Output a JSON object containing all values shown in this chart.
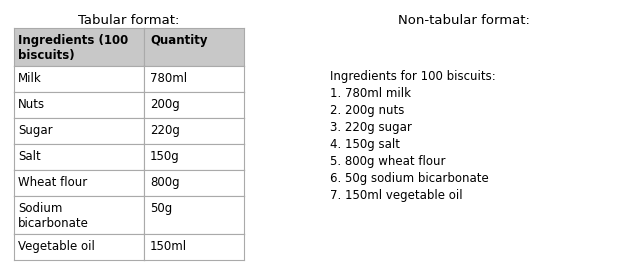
{
  "tabular_title": "Tabular format:",
  "non_tabular_title": "Non-tabular format:",
  "col_headers": [
    "Ingredients (100\nbiscuits)",
    "Quantity"
  ],
  "rows": [
    [
      "Milk",
      "780ml"
    ],
    [
      "Nuts",
      "200g"
    ],
    [
      "Sugar",
      "220g"
    ],
    [
      "Salt",
      "150g"
    ],
    [
      "Wheat flour",
      "800g"
    ],
    [
      "Sodium\nbicarbonate",
      "50g"
    ],
    [
      "Vegetable oil",
      "150ml"
    ]
  ],
  "non_tabular_intro": "Ingredients for 100 biscuits:",
  "non_tabular_items": [
    "1. 780ml milk",
    "2. 200g nuts",
    "3. 220g sugar",
    "4. 150g salt",
    "5. 800g wheat flour",
    "6. 50g sodium bicarbonate",
    "7. 150ml vegetable oil"
  ],
  "header_bg": "#c8c8c8",
  "border_color": "#aaaaaa",
  "font_size": 8.5,
  "title_font_size": 9.5,
  "background_color": "#ffffff",
  "fig_width": 6.19,
  "fig_height": 2.8,
  "dpi": 100
}
